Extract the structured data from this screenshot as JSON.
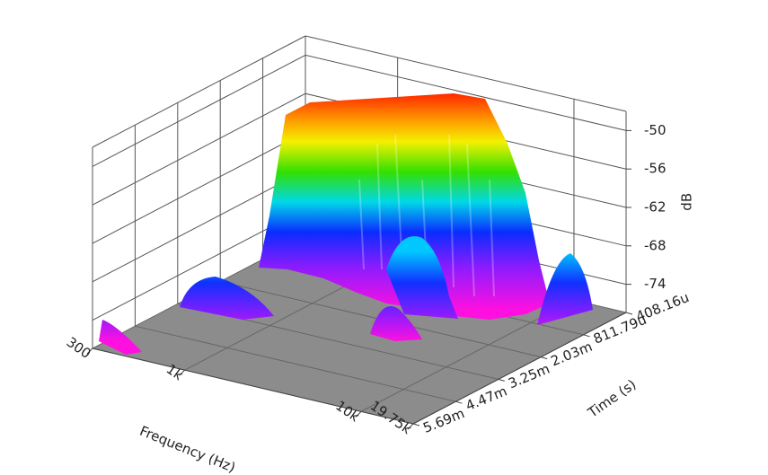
{
  "chart_data": {
    "type": "surface3d",
    "x_label": "Frequency (Hz)",
    "y_label": "Time (s)",
    "z_label": "dB",
    "x_log": true,
    "xlim": [
      300,
      19750
    ],
    "xticks": [
      300,
      {
        "value": 1000,
        "label": "1k"
      },
      {
        "value": 10000,
        "label": "10k"
      },
      {
        "value": 19750,
        "label": "19.75k"
      }
    ],
    "yticks": [
      "408.16u",
      "811.79u",
      "2.03m",
      "3.25m",
      "4.47m",
      "5.69m"
    ],
    "zlim": [
      -78.4,
      -47
    ],
    "zticks": [
      -50,
      -56,
      -62,
      -68,
      -74
    ],
    "floor_color": "#8c8c8c",
    "grid": true
  }
}
